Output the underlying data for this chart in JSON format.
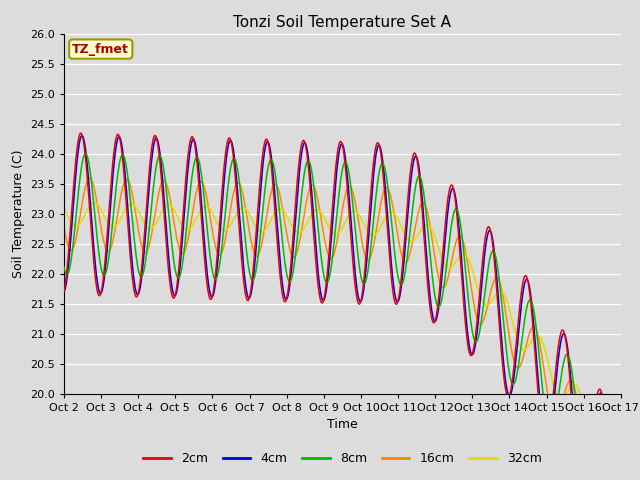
{
  "title": "Tonzi Soil Temperature Set A",
  "xlabel": "Time",
  "ylabel": "Soil Temperature (C)",
  "ylim": [
    20.0,
    26.0
  ],
  "annotation": "TZ_fmet",
  "background_color": "#dcdcdc",
  "plot_bg_color": "#dcdcdc",
  "grid_color": "#ffffff",
  "line_colors": {
    "2cm": "#ee0000",
    "4cm": "#0000dd",
    "8cm": "#00bb00",
    "16cm": "#ff8800",
    "32cm": "#dddd00"
  },
  "legend_labels": [
    "2cm",
    "4cm",
    "8cm",
    "16cm",
    "32cm"
  ],
  "tick_labels": [
    "Oct 2",
    "Oct 3",
    "Oct 4",
    "Oct 5",
    "Oct 6",
    "Oct 7",
    "Oct 8",
    "Oct 9",
    "Oct 10",
    "Oct 11",
    "Oct 12",
    "Oct 13",
    "Oct 14",
    "Oct 15",
    "Oct 16",
    "Oct 17"
  ],
  "n_days": 15,
  "samples_per_day": 144
}
